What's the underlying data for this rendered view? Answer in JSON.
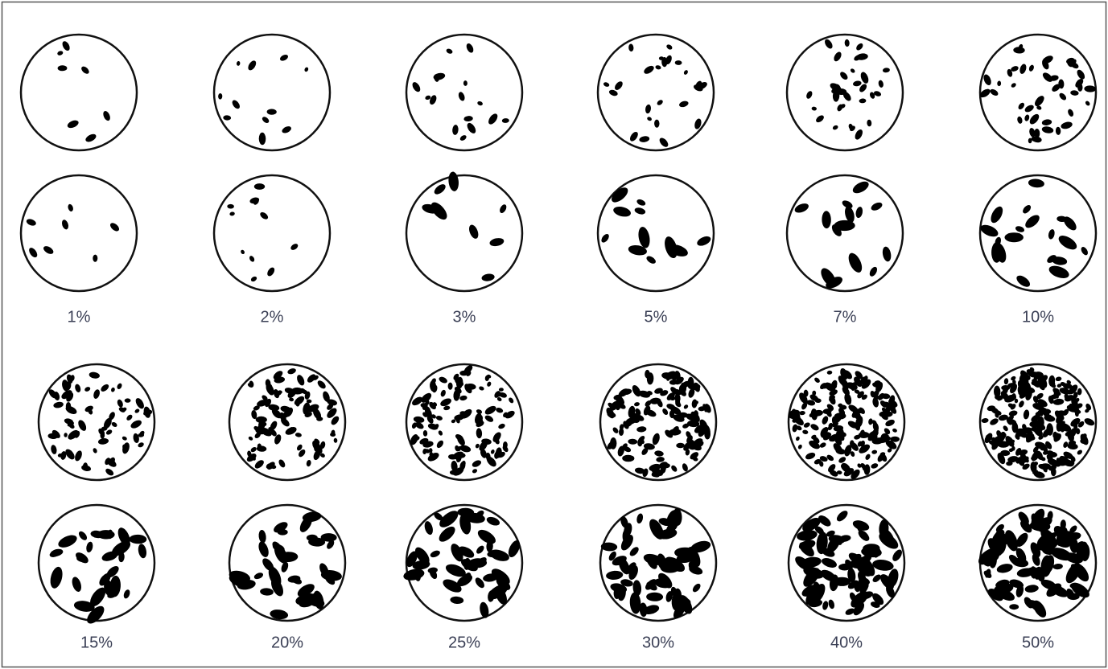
{
  "groups": [
    {
      "labels": [
        "1%",
        "2%",
        "3%",
        "5%",
        "7%",
        "10%"
      ]
    },
    {
      "labels": [
        "15%",
        "20%",
        "25%",
        "30%",
        "40%",
        "50%"
      ]
    }
  ]
}
